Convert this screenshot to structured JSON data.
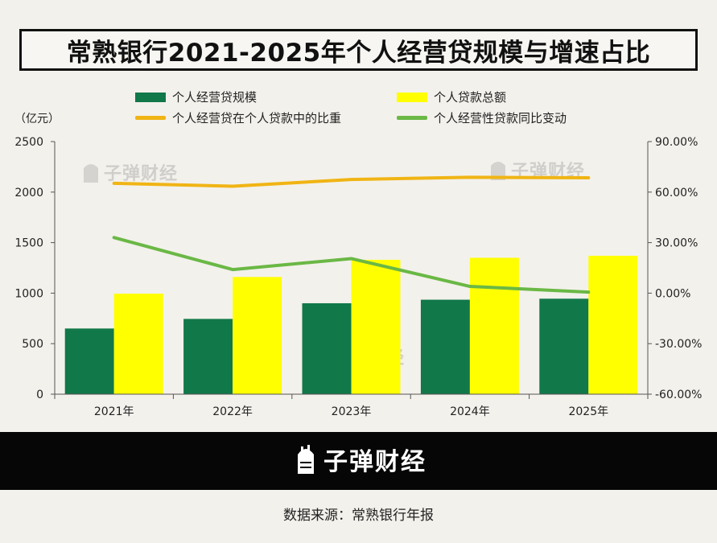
{
  "title": "常熟银行2021-2025年个人经营贷规模与增速占比",
  "unit_label": "（亿元）",
  "watermark_text": "子弹财经",
  "banner_text": "子弹财经",
  "source_text": "数据来源：常熟银行年报",
  "colors": {
    "dark_green": "#11784a",
    "yellow": "#ffff00",
    "orange": "#f0b414",
    "light_green": "#6ab845"
  },
  "icons": [
    "bullet-logo-icon"
  ],
  "chart_data": {
    "type": "bar",
    "categories": [
      "2021年",
      "2022年",
      "2023年",
      "2024年",
      "2025年"
    ],
    "series": [
      {
        "name": "个人经营贷规模",
        "type": "bar",
        "axis": "left",
        "values": [
          650,
          745,
          900,
          935,
          945
        ]
      },
      {
        "name": "个人贷款总额",
        "type": "bar",
        "axis": "left",
        "values": [
          995,
          1160,
          1330,
          1350,
          1370
        ]
      },
      {
        "name": "个人经营贷在个人贷款中的比重",
        "type": "line",
        "axis": "right",
        "values": [
          65.2,
          63.5,
          67.5,
          68.8,
          68.5
        ]
      },
      {
        "name": "个人经营性贷款同比变动",
        "type": "line",
        "axis": "right",
        "values": [
          33.0,
          14.0,
          20.5,
          4.0,
          0.6
        ]
      }
    ],
    "y_left": {
      "ticks": [
        "0",
        "500",
        "1000",
        "1500",
        "2000",
        "2500"
      ],
      "range": [
        0,
        2500
      ]
    },
    "y_right": {
      "ticks": [
        "-60.00%",
        "-30.00%",
        "0.00%",
        "30.00%",
        "60.00%",
        "90.00%"
      ],
      "range": [
        -60,
        90
      ]
    },
    "legend_position": "top",
    "grid": false
  }
}
